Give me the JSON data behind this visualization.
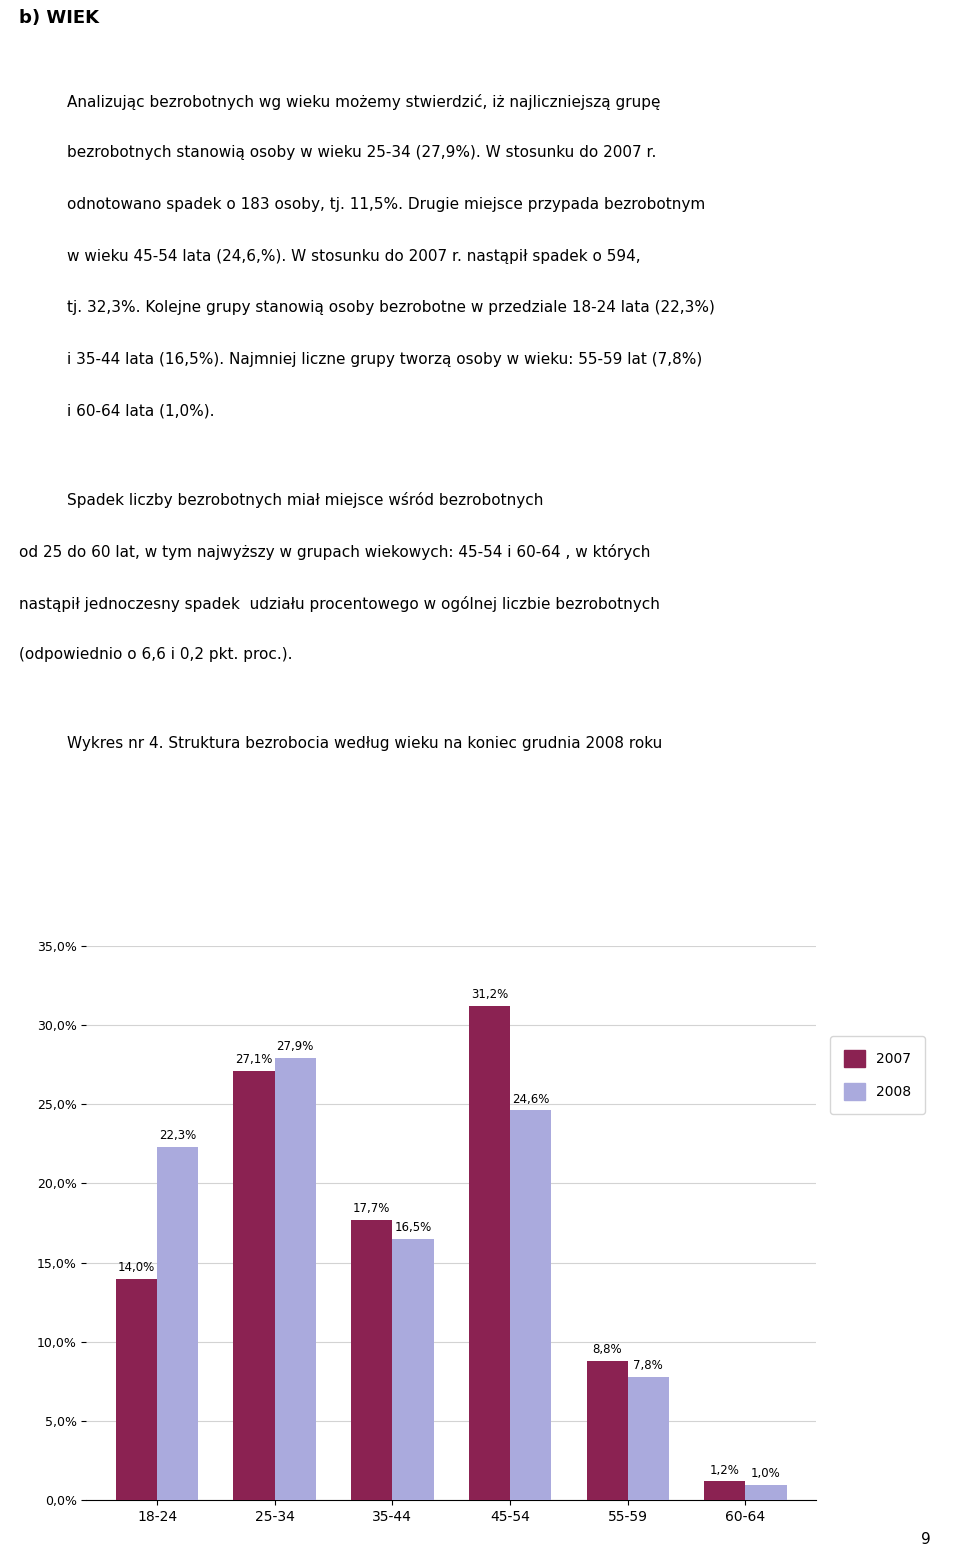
{
  "categories": [
    "18-24",
    "25-34",
    "35-44",
    "45-54",
    "55-59",
    "60-64"
  ],
  "values_2007": [
    14.0,
    27.1,
    17.7,
    31.2,
    8.8,
    1.2
  ],
  "values_2008": [
    22.3,
    27.9,
    16.5,
    24.6,
    7.8,
    1.0
  ],
  "labels_2007": [
    "14,0%",
    "27,1%",
    "17,7%",
    "31,2%",
    "8,8%",
    "1,2%"
  ],
  "labels_2008": [
    "22,3%",
    "27,9%",
    "16,5%",
    "24,6%",
    "7,8%",
    "1,0%"
  ],
  "color_2007": "#8B2252",
  "color_2008": "#AAAADD",
  "ylim": [
    0,
    35
  ],
  "yticks": [
    0,
    5.0,
    10.0,
    15.0,
    20.0,
    25.0,
    30.0,
    35.0
  ],
  "ytick_labels": [
    "0,0%",
    "5,0%",
    "10,0%",
    "15,0%",
    "20,0%",
    "25,0%",
    "30,0%",
    "35,0%"
  ],
  "legend_2007": "2007",
  "legend_2008": "2008",
  "title_text": "Wykres nr 4. Struktura bezrobocia według wieku na koniec grudnia 2008 roku",
  "header_text": "b) WIEK",
  "paragraph1_lines": [
    "Analizując bezrobotnych wg wieku możemy stwierdzić, iż najliczniejszą grupę",
    "bezrobotnych stanowią osoby w wieku 25-34 (27,9%). W stosunku do 2007 r.",
    "odnotowano spadek o 183 osoby, tj. 11,5%. Drugie miejsce przypada bezrobotnym",
    "w wieku 45-54 lata (24,6,%). W stosunku do 2007 r. nastąpił spadek o 594,",
    "tj. 32,3%. Kolejne grupy stanowią osoby bezrobotne w przedziale 18-24 lata (22,3%)",
    "i 35-44 lata (16,5%). Najmniej liczne grupy tworzą osoby w wieku: 55-59 lat (7,8%)",
    "i 60-64 lata (1,0%)."
  ],
  "paragraph2_lines": [
    "Spadek liczby bezrobotnych miał miejsce wśród bezrobotnych",
    "od 25 do 60 lat, w tym najwyższy w grupach wiekowych: 45-54 i 60-64 , w których",
    "nastąpił jednoczesny spadek  udziału procentowego w ogólnej liczbie bezrobotnych",
    "(odpowiednio o 6,6 i 0,2 pkt. proc.)."
  ],
  "page_number": "9",
  "bar_width": 0.35,
  "figsize": [
    9.6,
    15.63
  ],
  "dpi": 100
}
